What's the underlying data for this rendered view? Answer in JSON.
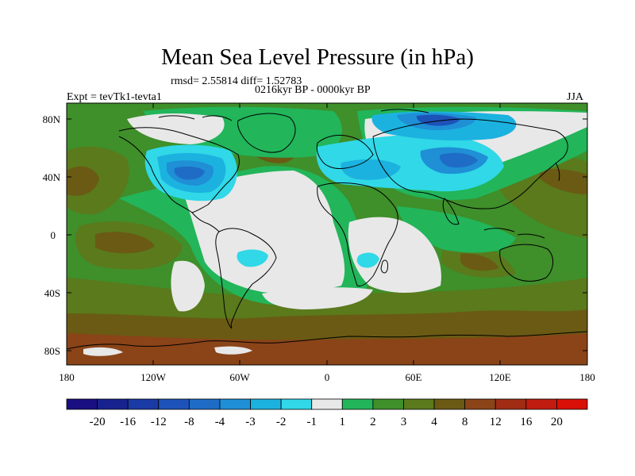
{
  "title": "Mean Sea Level Pressure (in hPa)",
  "stats": "rmsd= 2.55814 diff= 1.52783",
  "period": "0216kyr BP - 0000kyr BP",
  "experiment": "Expt = tevTk1-tevta1",
  "season": "JJA",
  "axes": {
    "lat_ticks": [
      "80N",
      "40N",
      "0",
      "40S",
      "80S"
    ],
    "lon_ticks": [
      "180",
      "120W",
      "60W",
      "0",
      "60E",
      "120E",
      "180"
    ]
  },
  "colorbar": {
    "labels": [
      "-20",
      "-16",
      "-12",
      "-8",
      "-4",
      "-3",
      "-2",
      "-1",
      "1",
      "2",
      "3",
      "4",
      "8",
      "12",
      "16",
      "20"
    ],
    "colors": [
      "#1a0f80",
      "#17228f",
      "#1a3aa5",
      "#1d52b8",
      "#1f6cc6",
      "#1f8fd6",
      "#1cb2df",
      "#30d8e8",
      "#e8e8e8",
      "#22b55a",
      "#3f8f2a",
      "#5a7a1c",
      "#6a5a14",
      "#8a4418",
      "#a02c14",
      "#c01c10",
      "#d81008"
    ]
  },
  "colors": {
    "background": "#ffffff",
    "ocean_low": "#3f8f2a",
    "neutral": "#e8e8e8"
  }
}
